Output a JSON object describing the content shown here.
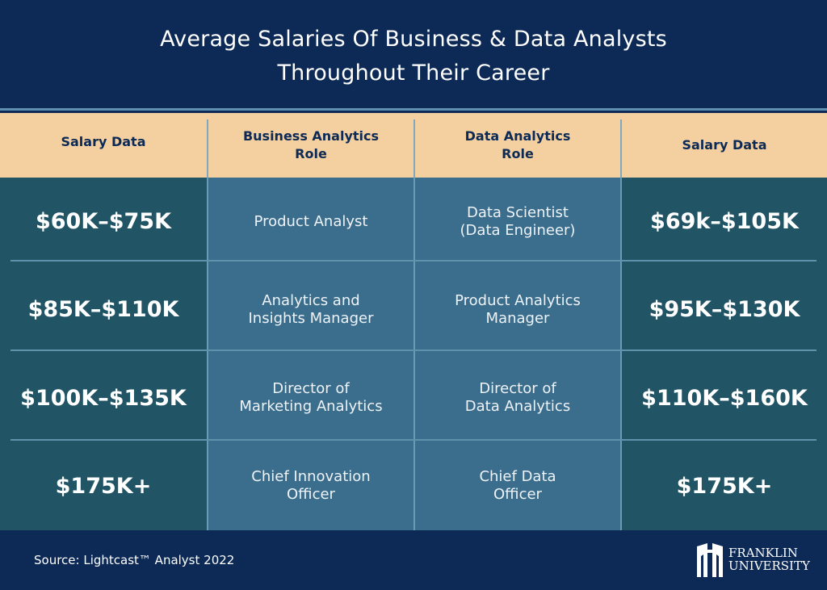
{
  "title": {
    "line1": "Average Salaries Of Business & Data Analysts",
    "line2": "Throughout Their Career"
  },
  "headers": [
    "Salary Data",
    "Business Analytics\nRole",
    "Data Analytics\nRole",
    "Salary Data"
  ],
  "rows": [
    {
      "business_salary": "$60K–$75K",
      "business_role": "Product Analyst",
      "data_role": "Data Scientist\n(Data Engineer)",
      "data_salary": "$69k–$105K"
    },
    {
      "business_salary": "$85K–$110K",
      "business_role": "Analytics and\nInsights Manager",
      "data_role": "Product Analytics\nManager",
      "data_salary": "$95K–$130K"
    },
    {
      "business_salary": "$100K–$135K",
      "business_role": "Director of\nMarketing Analytics",
      "data_role": "Director of\nData Analytics",
      "data_salary": "$110K–$160K"
    },
    {
      "business_salary": "$175K+",
      "business_role": "Chief Innovation\nOfficer",
      "data_role": "Chief Data\nOfficer",
      "data_salary": "$175K+"
    }
  ],
  "footer": {
    "source": "Source: Lightcast™ Analyst 2022",
    "logo_line1": "FRANKLIN",
    "logo_line2": "UNIVERSITY"
  }
}
